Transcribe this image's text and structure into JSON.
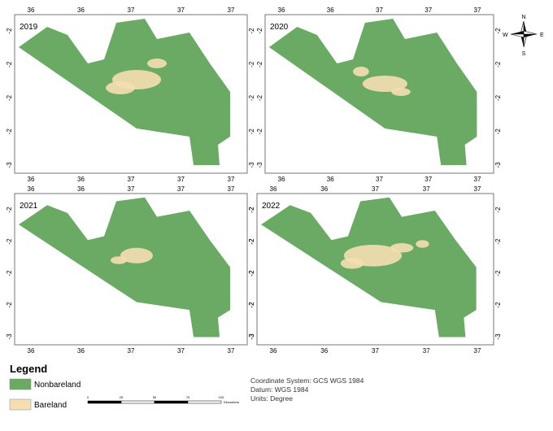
{
  "panels": [
    {
      "year": "2019",
      "top_labels": [
        "36",
        "36",
        "37",
        "37",
        "37"
      ],
      "bottom_labels": [
        "36",
        "36",
        "37",
        "37",
        "37"
      ],
      "left_labels": [
        "-2",
        "-2",
        "-2",
        "-2",
        "-3"
      ],
      "right_labels": [
        "-2",
        "-2",
        "-2",
        "-2",
        "-3"
      ]
    },
    {
      "year": "2020",
      "top_labels": [
        "36",
        "36",
        "37",
        "37",
        "37"
      ],
      "bottom_labels": [
        "36",
        "36",
        "37",
        "37",
        "37"
      ],
      "left_labels": [
        "-2",
        "-2",
        "-2",
        "-2",
        "-3"
      ],
      "right_labels": [
        "-2",
        "-2",
        "-2",
        "-2",
        "-3"
      ]
    },
    {
      "year": "2021",
      "top_labels": [
        "36",
        "36",
        "37",
        "37",
        "37"
      ],
      "bottom_labels": [
        "36",
        "36",
        "37",
        "37",
        "37"
      ],
      "left_labels": [
        "-2",
        "-2",
        "-2",
        "-2",
        "-3"
      ],
      "right_labels": [
        "-2",
        "-2",
        "-2",
        "-2",
        "-3"
      ]
    },
    {
      "year": "2022",
      "top_labels": [
        "36",
        "36",
        "37",
        "37",
        "37"
      ],
      "bottom_labels": [
        "36",
        "36",
        "37",
        "37",
        "37"
      ],
      "left_labels": [
        "-2",
        "-2",
        "-2",
        "-2",
        "-3"
      ],
      "right_labels": [
        "-2",
        "-2",
        "-2",
        "-2",
        "-3"
      ]
    }
  ],
  "legend": {
    "title": "Legend",
    "items": [
      {
        "label": "Nonbareland",
        "color": "#6aaa64"
      },
      {
        "label": "Bareland",
        "color": "#f5deb0"
      }
    ]
  },
  "scale_bar": {
    "labels": [
      "0",
      "25",
      "50",
      "75",
      "100"
    ],
    "unit": "Kilometers"
  },
  "coordinate_info": [
    "Coordinate System: GCS WGS 1984",
    "Datum: WGS 1984",
    "Units: Degree"
  ],
  "north_arrow": {
    "n": "N",
    "s": "S",
    "e": "E",
    "w": "W"
  }
}
